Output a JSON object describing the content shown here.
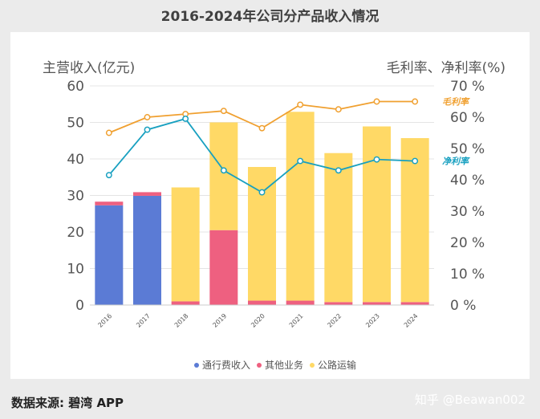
{
  "page": {
    "title": "2016-2024年公司分产品收入情况",
    "source": "数据来源: 碧湾 APP",
    "watermark": "知乎 @Beawan002"
  },
  "chart_data": {
    "type": "bar",
    "stacked": true,
    "title": "2016-2024年公司分产品收入情况",
    "ylabel": "主营收入(亿元)",
    "y2label": "毛利率、净利率(%)",
    "ylim": [
      0,
      60
    ],
    "y2lim": [
      0,
      70
    ],
    "yticks": [
      "0",
      "10",
      "20",
      "30",
      "40",
      "50",
      "60"
    ],
    "y2ticks": [
      "0 %",
      "10 %",
      "20 %",
      "30 %",
      "40 %",
      "50 %",
      "60 %",
      "70 %"
    ],
    "categories": [
      "2016",
      "2017",
      "2018",
      "2019",
      "2020",
      "2021",
      "2022",
      "2023",
      "2024"
    ],
    "series": [
      {
        "name": "通行费收入",
        "kind": "bar",
        "axis": "left",
        "color": "#5b7bd5",
        "values": [
          27.3,
          29.9,
          0,
          0,
          0,
          0,
          0,
          0,
          0
        ]
      },
      {
        "name": "其他业务",
        "kind": "bar",
        "axis": "left",
        "color": "#ee6080",
        "values": [
          1.0,
          1.0,
          1.0,
          20.5,
          1.2,
          1.2,
          0.8,
          0.8,
          0.8
        ]
      },
      {
        "name": "公路运输",
        "kind": "bar",
        "axis": "left",
        "color": "#ffd966",
        "values": [
          0,
          0,
          31.2,
          29.5,
          36.6,
          51.7,
          40.8,
          48.1,
          44.9
        ]
      },
      {
        "name": "毛利率",
        "kind": "line",
        "axis": "right",
        "color": "#f0a030",
        "values": [
          55,
          60,
          61,
          62,
          56.5,
          64,
          62.5,
          65,
          65
        ]
      },
      {
        "name": "净利率",
        "kind": "line",
        "axis": "right",
        "color": "#18a0c0",
        "values": [
          41.5,
          56,
          59.5,
          43,
          36,
          46,
          43,
          46.5,
          46
        ]
      }
    ],
    "legend": {
      "position": "bottom",
      "entries": [
        "通行费收入",
        "其他业务",
        "公路运输"
      ]
    },
    "line_labels": [
      "毛利率",
      "净利率"
    ],
    "grid": true
  }
}
